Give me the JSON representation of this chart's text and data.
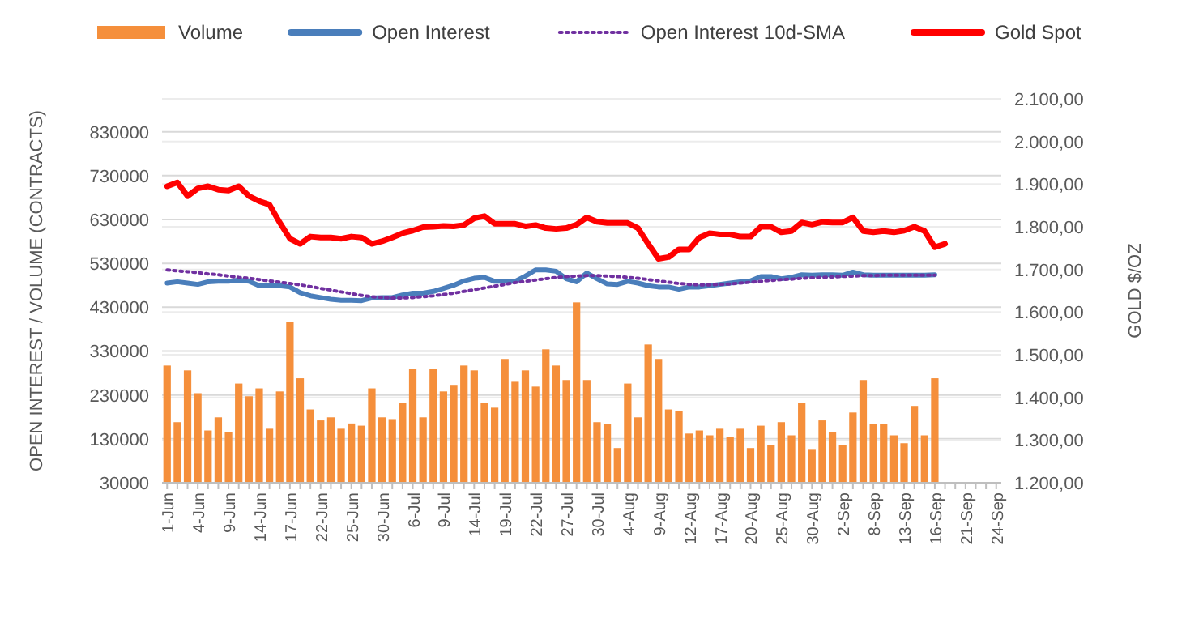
{
  "chart_data": {
    "type": "bar",
    "categories": [
      "1-Jun",
      null,
      null,
      "4-Jun",
      null,
      null,
      "9-Jun",
      null,
      null,
      "14-Jun",
      null,
      null,
      "17-Jun",
      null,
      null,
      "22-Jun",
      null,
      null,
      "25-Jun",
      null,
      null,
      "30-Jun",
      null,
      null,
      "6-Jul",
      null,
      null,
      "9-Jul",
      null,
      null,
      "14-Jul",
      null,
      null,
      "19-Jul",
      null,
      null,
      "22-Jul",
      null,
      null,
      "27-Jul",
      null,
      null,
      "30-Jul",
      null,
      null,
      "4-Aug",
      null,
      null,
      "9-Aug",
      null,
      null,
      "12-Aug",
      null,
      null,
      "17-Aug",
      null,
      null,
      "20-Aug",
      null,
      null,
      "25-Aug",
      null,
      null,
      "30-Aug",
      null,
      null,
      "2-Sep",
      null,
      null,
      "8-Sep",
      null,
      null,
      "13-Sep",
      null,
      null,
      "16-Sep",
      null,
      null,
      "21-Sep",
      null,
      null,
      "24-Sep"
    ],
    "series": [
      {
        "name": "Volume",
        "color": "#f58f3b",
        "values": [
          297000,
          168000,
          286000,
          234000,
          149000,
          179000,
          146000,
          256000,
          227000,
          245000,
          153000,
          238000,
          397000,
          268000,
          197000,
          172000,
          179000,
          153000,
          165000,
          160000,
          245000,
          179000,
          175000,
          212000,
          290000,
          179000,
          290000,
          238000,
          253000,
          297000,
          286000,
          212000,
          201000,
          312000,
          260000,
          286000,
          249000,
          334000,
          297000,
          264000,
          441000,
          264000,
          168000,
          164000,
          109000,
          256000,
          179000,
          345000,
          312000,
          197000,
          194000,
          142000,
          149000,
          138000,
          153000,
          135000,
          153000,
          109000,
          160000,
          116000,
          168000,
          138000,
          212000,
          105000,
          172000,
          146000,
          116000,
          190000,
          264000,
          164000,
          164000,
          138000,
          120000,
          205000,
          138000,
          268000,
          null,
          null,
          null,
          null,
          null,
          null
        ]
      },
      {
        "name": "Open Interest",
        "type": "line",
        "color": "#4a7ebb",
        "values": [
          485000,
          488000,
          485000,
          482000,
          488000,
          489000,
          489000,
          492000,
          489000,
          479000,
          479000,
          479000,
          476000,
          463000,
          456000,
          452000,
          448000,
          446000,
          446000,
          445000,
          451000,
          452000,
          452000,
          458000,
          462000,
          462000,
          466000,
          473000,
          480000,
          490000,
          496000,
          498000,
          489000,
          489000,
          489000,
          501000,
          515000,
          515000,
          512000,
          495000,
          488000,
          508000,
          495000,
          483000,
          482000,
          489000,
          485000,
          479000,
          476000,
          476000,
          471000,
          476000,
          476000,
          479000,
          482000,
          485000,
          488000,
          490000,
          500000,
          500000,
          495000,
          498000,
          504000,
          503000,
          504000,
          504000,
          503000,
          510000,
          504000,
          503000,
          503000,
          503000,
          503000,
          503000,
          503000,
          504000,
          null,
          null,
          null,
          null,
          null,
          null
        ]
      },
      {
        "name": "Open Interest 10d-SMA",
        "type": "line",
        "line_style": "dotted",
        "color": "#7030a0",
        "values": [
          515000,
          513000,
          511000,
          509000,
          506000,
          504000,
          501000,
          498000,
          496000,
          493000,
          490000,
          487000,
          484000,
          481000,
          477000,
          473000,
          469000,
          465000,
          461000,
          457000,
          454000,
          452000,
          451000,
          451000,
          452000,
          454000,
          456000,
          459000,
          462000,
          466000,
          470000,
          474000,
          478000,
          482000,
          486000,
          489000,
          492000,
          495000,
          498000,
          500000,
          501000,
          502000,
          502000,
          501000,
          500000,
          498000,
          496000,
          493000,
          490000,
          487000,
          484000,
          482000,
          481000,
          481000,
          482000,
          483000,
          485000,
          487000,
          489000,
          491000,
          493000,
          494000,
          496000,
          497000,
          498000,
          499000,
          500000,
          501000,
          502000,
          502000,
          503000,
          503000,
          503000,
          503000,
          503000,
          503000,
          null,
          null,
          null,
          null,
          null,
          null
        ]
      },
      {
        "name": "Gold Spot",
        "type": "line",
        "axis": "y2",
        "color": "#ff0000",
        "values": [
          1895,
          1904,
          1872,
          1890,
          1895,
          1887,
          1885,
          1895,
          1872,
          1860,
          1852,
          1810,
          1772,
          1760,
          1777,
          1775,
          1775,
          1772,
          1777,
          1775,
          1760,
          1766,
          1775,
          1785,
          1791,
          1799,
          1800,
          1802,
          1801,
          1804,
          1820,
          1825,
          1807,
          1807,
          1807,
          1801,
          1804,
          1797,
          1795,
          1797,
          1805,
          1822,
          1812,
          1809,
          1809,
          1809,
          1797,
          1760,
          1725,
          1729,
          1747,
          1747,
          1775,
          1785,
          1782,
          1782,
          1777,
          1777,
          1800,
          1800,
          1787,
          1790,
          1810,
          1805,
          1811,
          1810,
          1810,
          1822,
          1790,
          1787,
          1790,
          1787,
          1791,
          1800,
          1790,
          1752,
          1760,
          null,
          null,
          null,
          null,
          null
        ]
      }
    ],
    "ylabel": "OPEN INTEREST / VOLUME (CONTRACTS)",
    "y2label": "GOLD $/OZ",
    "ylim": [
      30000,
      905000
    ],
    "yticks": [
      30000,
      130000,
      230000,
      330000,
      430000,
      530000,
      630000,
      730000,
      830000
    ],
    "y2lim": [
      1200,
      2100
    ],
    "y2ticks": [
      {
        "value": 1200,
        "label": "1.200,00"
      },
      {
        "value": 1300,
        "label": "1.300,00"
      },
      {
        "value": 1400,
        "label": "1.400,00"
      },
      {
        "value": 1500,
        "label": "1.500,00"
      },
      {
        "value": 1600,
        "label": "1.600,00"
      },
      {
        "value": 1700,
        "label": "1.700,00"
      },
      {
        "value": 1800,
        "label": "1.800,00"
      },
      {
        "value": 1900,
        "label": "1.900,00"
      },
      {
        "value": 2000,
        "label": "2.000,00"
      },
      {
        "value": 2100,
        "label": "2.100,00"
      }
    ],
    "grid": "y",
    "legend": "top"
  }
}
